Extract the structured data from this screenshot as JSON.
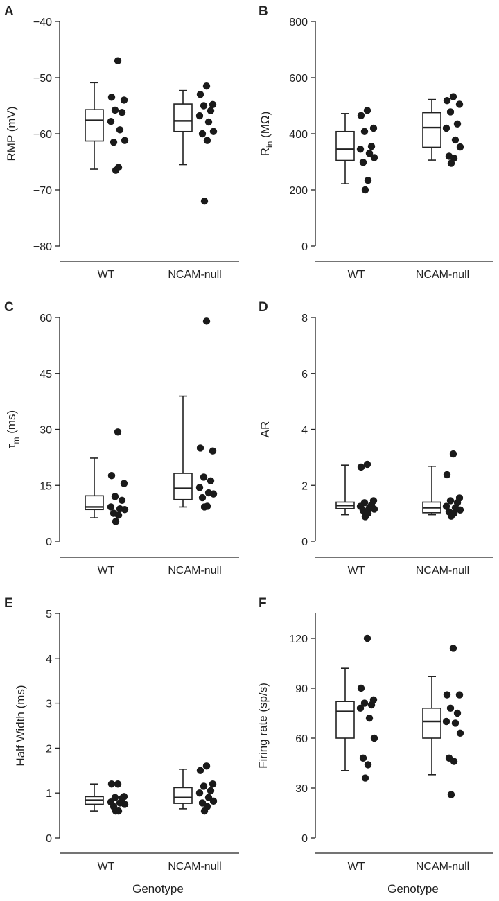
{
  "figure": {
    "xlabel_bottom": "Genotype"
  },
  "chart_data": [
    {
      "panel": "A",
      "type": "boxplot-with-points",
      "ylabel": "RMP (mV)",
      "ylabel_sub": "",
      "ylim": [
        -80,
        -40
      ],
      "yticks": [
        -40,
        -50,
        -60,
        -70,
        -80
      ],
      "ytick_labels": [
        "−40",
        "−50",
        "−60",
        "−70",
        "−80"
      ],
      "categories": [
        "WT",
        "NCAM-null"
      ],
      "groups": [
        {
          "name": "WT",
          "whisker_low": -66.3,
          "q1": -61.3,
          "median": -57.6,
          "q3": -55.7,
          "whisker_high": -50.9,
          "points": [
            -47,
            -53.5,
            -54,
            -55.8,
            -56.2,
            -57.8,
            -59.3,
            -61.2,
            -61.5,
            -66,
            -66.5
          ]
        },
        {
          "name": "NCAM-null",
          "whisker_low": -65.5,
          "q1": -59.6,
          "median": -57.7,
          "q3": -54.7,
          "whisker_high": -52.3,
          "points": [
            -51.5,
            -53,
            -54.8,
            -55,
            -55.9,
            -56.8,
            -57.9,
            -59.6,
            -60,
            -61.2,
            -72
          ]
        }
      ]
    },
    {
      "panel": "B",
      "type": "boxplot-with-points",
      "ylabel": "R",
      "ylabel_sub": "in",
      "ylabel_suffix": " (MΩ)",
      "ylim": [
        0,
        800
      ],
      "yticks": [
        800,
        600,
        400,
        200,
        0
      ],
      "ytick_labels": [
        "800",
        "600",
        "400",
        "200",
        "0"
      ],
      "categories": [
        "WT",
        "NCAM-null"
      ],
      "groups": [
        {
          "name": "WT",
          "whisker_low": 222,
          "q1": 305,
          "median": 345,
          "q3": 408,
          "whisker_high": 472,
          "points": [
            483,
            465,
            420,
            408,
            355,
            345,
            330,
            315,
            298,
            234,
            200
          ]
        },
        {
          "name": "NCAM-null",
          "whisker_low": 306,
          "q1": 352,
          "median": 422,
          "q3": 475,
          "whisker_high": 522,
          "points": [
            532,
            518,
            505,
            478,
            435,
            420,
            378,
            353,
            320,
            313,
            295
          ]
        }
      ]
    },
    {
      "panel": "C",
      "type": "boxplot-with-points",
      "ylabel": "τ",
      "ylabel_sub": "m",
      "ylabel_suffix": " (ms)",
      "ylim": [
        0,
        60
      ],
      "yticks": [
        60,
        45,
        30,
        15,
        0
      ],
      "ytick_labels": [
        "60",
        "45",
        "30",
        "15",
        "0"
      ],
      "categories": [
        "WT",
        "NCAM-null"
      ],
      "groups": [
        {
          "name": "WT",
          "whisker_low": 6.3,
          "q1": 8.5,
          "median": 9.2,
          "q3": 12.2,
          "whisker_high": 22.3,
          "points": [
            29.3,
            17.6,
            15.5,
            12,
            11,
            9.2,
            8.7,
            8.5,
            7.5,
            7,
            5.3
          ]
        },
        {
          "name": "NCAM-null",
          "whisker_low": 9.2,
          "q1": 11.2,
          "median": 14.2,
          "q3": 18.2,
          "whisker_high": 38.9,
          "points": [
            59,
            25,
            24.2,
            17.2,
            16.2,
            14.4,
            13,
            12.7,
            11.7,
            9.4,
            9.2
          ]
        }
      ]
    },
    {
      "panel": "D",
      "type": "boxplot-with-points",
      "ylabel": "AR",
      "ylabel_sub": "",
      "ylim": [
        0,
        8
      ],
      "yticks": [
        8,
        6,
        4,
        2,
        0
      ],
      "ytick_labels": [
        "8",
        "6",
        "4",
        "2",
        "0"
      ],
      "categories": [
        "WT",
        "NCAM-null"
      ],
      "groups": [
        {
          "name": "WT",
          "whisker_low": 0.95,
          "q1": 1.17,
          "median": 1.28,
          "q3": 1.4,
          "whisker_high": 2.72,
          "points": [
            2.75,
            2.65,
            1.45,
            1.38,
            1.3,
            1.25,
            1.2,
            1.15,
            1.1,
            1.0,
            0.88
          ]
        },
        {
          "name": "NCAM-null",
          "whisker_low": 0.95,
          "q1": 1.02,
          "median": 1.2,
          "q3": 1.4,
          "whisker_high": 2.68,
          "points": [
            3.12,
            2.38,
            1.55,
            1.45,
            1.38,
            1.25,
            1.2,
            1.12,
            1.05,
            1.0,
            0.9
          ]
        }
      ]
    },
    {
      "panel": "E",
      "type": "boxplot-with-points",
      "ylabel": "Half Width (ms)",
      "ylabel_sub": "",
      "ylim": [
        0,
        5
      ],
      "yticks": [
        5,
        4,
        3,
        2,
        1,
        0
      ],
      "ytick_labels": [
        "5",
        "4",
        "3",
        "2",
        "1",
        "0"
      ],
      "categories": [
        "WT",
        "NCAM-null"
      ],
      "groups": [
        {
          "name": "WT",
          "whisker_low": 0.6,
          "q1": 0.75,
          "median": 0.84,
          "q3": 0.92,
          "whisker_high": 1.2,
          "points": [
            1.2,
            1.2,
            0.92,
            0.9,
            0.88,
            0.8,
            0.78,
            0.75,
            0.7,
            0.6,
            0.6
          ]
        },
        {
          "name": "NCAM-null",
          "whisker_low": 0.65,
          "q1": 0.77,
          "median": 0.9,
          "q3": 1.12,
          "whisker_high": 1.53,
          "points": [
            1.6,
            1.5,
            1.2,
            1.15,
            1.05,
            1.0,
            0.9,
            0.82,
            0.78,
            0.7,
            0.6
          ]
        }
      ]
    },
    {
      "panel": "F",
      "type": "boxplot-with-points",
      "ylabel": "Firing rate (sp/s)",
      "ylabel_sub": "",
      "ylim": [
        0,
        135
      ],
      "yticks": [
        120,
        90,
        60,
        30,
        0
      ],
      "ytick_labels": [
        "120",
        "90",
        "60",
        "30",
        "0"
      ],
      "categories": [
        "WT",
        "NCAM-null"
      ],
      "groups": [
        {
          "name": "WT",
          "whisker_low": 40.5,
          "q1": 60,
          "median": 76,
          "q3": 82,
          "whisker_high": 102,
          "points": [
            120,
            90,
            83,
            81,
            80,
            78,
            72,
            60,
            48,
            44,
            36
          ]
        },
        {
          "name": "NCAM-null",
          "whisker_low": 38,
          "q1": 60,
          "median": 70,
          "q3": 78,
          "whisker_high": 97,
          "points": [
            114,
            86,
            86,
            78,
            75,
            70,
            69,
            63,
            48,
            46,
            26
          ]
        }
      ]
    }
  ]
}
